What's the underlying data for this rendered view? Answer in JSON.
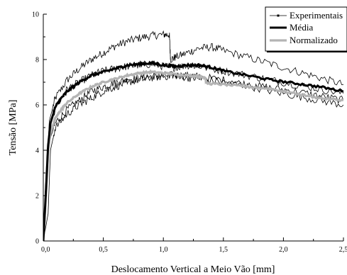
{
  "chart_data": {
    "type": "line",
    "xlabel": "Deslocamento Vertical a Meio Vão [mm]",
    "ylabel": "Tensão [MPa]",
    "xlim": [
      0,
      2.5
    ],
    "ylim": [
      0,
      10
    ],
    "xticks": [
      0,
      0.5,
      1.0,
      1.5,
      2.0,
      2.5
    ],
    "xtick_labels": [
      "0,0",
      "0,5",
      "1,0",
      "1,5",
      "2,0",
      "2,5"
    ],
    "yticks": [
      0,
      2,
      4,
      6,
      8,
      10
    ],
    "ytick_labels": [
      "0",
      "2",
      "4",
      "6",
      "8",
      "10"
    ],
    "grid": false,
    "legend_position": "top-right",
    "legend_entries": [
      "Experimentais",
      "Média",
      "Normalizado"
    ],
    "series": [
      {
        "name": "Experimentais",
        "color": "#000000",
        "style": "thin-noisy",
        "curves": [
          {
            "x": [
              0,
              0.02,
              0.05,
              0.1,
              0.2,
              0.3,
              0.4,
              0.5,
              0.6,
              0.7,
              0.8,
              0.9,
              1.0,
              1.05,
              1.06,
              1.1,
              1.2,
              1.3,
              1.4,
              1.5,
              1.7,
              1.9,
              2.1,
              2.3,
              2.5
            ],
            "y": [
              0,
              2.0,
              5.3,
              6.3,
              7.1,
              7.6,
              8.0,
              8.3,
              8.6,
              8.8,
              8.95,
              9.05,
              9.1,
              9.1,
              8.0,
              8.1,
              8.3,
              8.5,
              8.55,
              8.4,
              8.1,
              7.8,
              7.5,
              7.2,
              6.9
            ]
          },
          {
            "x": [
              0,
              0.03,
              0.05,
              0.1,
              0.2,
              0.3,
              0.4,
              0.5,
              0.6,
              0.7,
              0.8,
              0.9,
              1.0,
              1.1,
              1.2,
              1.3,
              1.5,
              1.7,
              1.9,
              2.1,
              2.3,
              2.5
            ],
            "y": [
              0,
              3.0,
              4.4,
              5.2,
              5.8,
              6.2,
              6.6,
              6.8,
              7.0,
              7.1,
              7.2,
              7.25,
              7.3,
              7.3,
              7.3,
              7.25,
              7.1,
              6.9,
              6.75,
              6.6,
              6.4,
              6.2
            ]
          },
          {
            "x": [
              0,
              0.02,
              0.05,
              0.1,
              0.2,
              0.3,
              0.4,
              0.5,
              0.6,
              0.7,
              0.8,
              0.9,
              1.0,
              1.1,
              1.2,
              1.3,
              1.5,
              1.7,
              1.9,
              2.1,
              2.3,
              2.5
            ],
            "y": [
              0,
              2.5,
              4.9,
              5.9,
              6.7,
              7.0,
              7.3,
              7.5,
              7.6,
              7.7,
              7.75,
              7.8,
              7.7,
              7.65,
              7.75,
              7.7,
              7.5,
              7.3,
              7.1,
              6.9,
              6.7,
              6.5
            ]
          },
          {
            "x": [
              0,
              0.04,
              0.06,
              0.1,
              0.2,
              0.3,
              0.4,
              0.5,
              0.6,
              0.7,
              0.8,
              0.9,
              1.0,
              1.1,
              1.2,
              1.3,
              1.5,
              1.7,
              1.9,
              2.1,
              2.3,
              2.5
            ],
            "y": [
              0,
              1.2,
              4.0,
              5.0,
              5.6,
              6.0,
              6.3,
              6.6,
              6.8,
              7.0,
              7.1,
              7.2,
              7.25,
              7.3,
              7.2,
              7.15,
              7.0,
              6.85,
              6.6,
              6.4,
              6.2,
              6.0
            ]
          }
        ]
      },
      {
        "name": "Média",
        "color": "#000000",
        "style": "thick",
        "x": [
          0,
          0.02,
          0.04,
          0.06,
          0.1,
          0.15,
          0.2,
          0.3,
          0.4,
          0.5,
          0.6,
          0.7,
          0.8,
          0.9,
          1.0,
          1.1,
          1.2,
          1.3,
          1.4,
          1.5,
          1.7,
          1.9,
          2.1,
          2.3,
          2.5
        ],
        "y": [
          0,
          2.0,
          4.2,
          5.2,
          5.9,
          6.3,
          6.6,
          7.0,
          7.3,
          7.45,
          7.6,
          7.75,
          7.8,
          7.85,
          7.75,
          7.7,
          7.75,
          7.75,
          7.65,
          7.5,
          7.3,
          7.1,
          6.95,
          6.8,
          6.6
        ]
      },
      {
        "name": "Normalizado",
        "color": "#b4b4b4",
        "style": "thick",
        "x": [
          0,
          0.02,
          0.04,
          0.06,
          0.1,
          0.15,
          0.2,
          0.3,
          0.4,
          0.5,
          0.6,
          0.7,
          0.8,
          0.9,
          1.0,
          1.1,
          1.2,
          1.3,
          1.35,
          1.36,
          1.5,
          1.7,
          1.9,
          2.1,
          2.3,
          2.5
        ],
        "y": [
          0,
          1.8,
          3.9,
          4.8,
          5.4,
          5.8,
          6.1,
          6.5,
          6.8,
          7.0,
          7.15,
          7.3,
          7.4,
          7.45,
          7.4,
          7.35,
          7.3,
          7.25,
          7.2,
          6.95,
          6.9,
          6.8,
          6.7,
          6.5,
          6.3,
          6.2
        ]
      }
    ]
  }
}
